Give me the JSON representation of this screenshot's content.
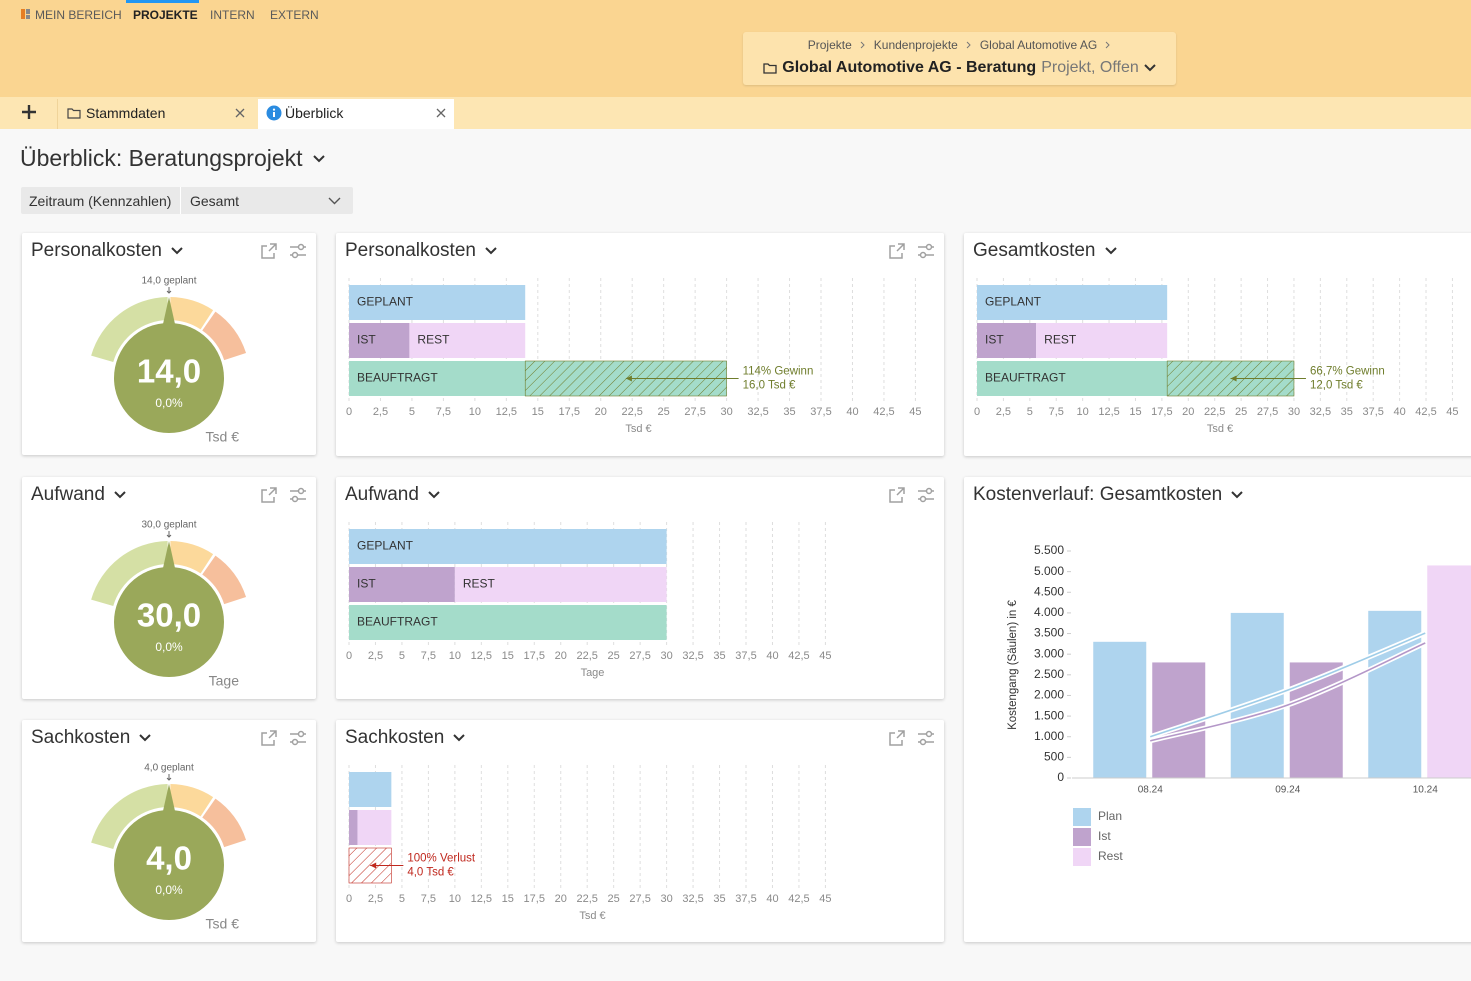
{
  "nav": {
    "items": [
      "MEIN BEREICH",
      "PROJEKTE",
      "INTERN",
      "EXTERN"
    ]
  },
  "breadcrumb": {
    "path": [
      "Projekte",
      "Kundenprojekte",
      "Global Automotive AG"
    ],
    "title": "Global Automotive AG - Beratung",
    "status": "Projekt, Offen"
  },
  "tabs": [
    "Stammdaten",
    "Überblick"
  ],
  "page": {
    "title": "Überblick: Beratungsprojekt",
    "filter": {
      "label": "Zeitraum (Kennzahlen)",
      "value": "Gesamt"
    }
  },
  "gauges": [
    {
      "title": "Personalkosten",
      "planned": "14,0 geplant",
      "value": "14,0",
      "percent": "0,0%",
      "unit": "Tsd €"
    },
    {
      "title": "Aufwand",
      "planned": "30,0 geplant",
      "value": "30,0",
      "percent": "0,0%",
      "unit": "Tage"
    },
    {
      "title": "Sachkosten",
      "planned": "4,0 geplant",
      "value": "4,0",
      "percent": "0,0%",
      "unit": "Tsd €"
    }
  ],
  "chart_data": [
    {
      "type": "budget",
      "title": "Personalkosten",
      "xlabel": "Tsd €",
      "xlim": [
        0,
        46
      ],
      "xticks": [
        0,
        {
          "value": 2.5,
          "label": "2,5"
        },
        5,
        {
          "value": 7.5,
          "label": "7,5"
        },
        10,
        {
          "value": 12.5,
          "label": "12,5"
        },
        15,
        {
          "value": 17.5,
          "label": "17,5"
        },
        20,
        {
          "value": 22.5,
          "label": "22,5"
        },
        25,
        {
          "value": 27.5,
          "label": "27,5"
        },
        30,
        {
          "value": 32.5,
          "label": "32,5"
        },
        35,
        {
          "value": 37.5,
          "label": "37,5"
        },
        40,
        {
          "value": 42.5,
          "label": "42,5"
        },
        45
      ],
      "bars": {
        "planned": {
          "label": "GEPLANT",
          "value": 14,
          "color": "#aed4ee"
        },
        "actual": {
          "label": "IST",
          "value": 4.8,
          "color": "#bfa3cd"
        },
        "rest": {
          "label": "REST",
          "value": 9.2,
          "color": "#f0d6f6"
        },
        "commissioned": {
          "label": "BEAUFTRAGT",
          "value": 30,
          "color": "#a4dcca"
        }
      },
      "annotation": [
        "114% Gewinn",
        "16,0 Tsd €"
      ],
      "annotation_color": "#6f7d2c"
    },
    {
      "type": "budget",
      "title": "Gesamtkosten",
      "xlabel": "Tsd €",
      "xlim": [
        0,
        46
      ],
      "xticks": [
        0,
        {
          "value": 2.5,
          "label": "2,5"
        },
        5,
        {
          "value": 7.5,
          "label": "7,5"
        },
        10,
        {
          "value": 12.5,
          "label": "12,5"
        },
        15,
        {
          "value": 17.5,
          "label": "17,5"
        },
        20,
        {
          "value": 22.5,
          "label": "22,5"
        },
        25,
        {
          "value": 27.5,
          "label": "27,5"
        },
        30,
        {
          "value": 32.5,
          "label": "32,5"
        },
        35,
        {
          "value": 37.5,
          "label": "37,5"
        },
        40,
        {
          "value": 42.5,
          "label": "42,5"
        },
        45
      ],
      "bars": {
        "planned": {
          "label": "GEPLANT",
          "value": 18,
          "color": "#aed4ee"
        },
        "actual": {
          "label": "IST",
          "value": 5.6,
          "color": "#bfa3cd"
        },
        "rest": {
          "label": "REST",
          "value": 12.4,
          "color": "#f0d6f6"
        },
        "commissioned": {
          "label": "BEAUFTRAGT",
          "value": 30,
          "color": "#a4dcca"
        }
      },
      "annotation": [
        "66,7% Gewinn",
        "12,0 Tsd €"
      ],
      "annotation_color": "#6f7d2c"
    },
    {
      "type": "budget",
      "title": "Aufwand",
      "xlabel": "Tage",
      "xlim": [
        0,
        46
      ],
      "xticks": [
        0,
        {
          "value": 2.5,
          "label": "2,5"
        },
        5,
        {
          "value": 7.5,
          "label": "7,5"
        },
        10,
        {
          "value": 12.5,
          "label": "12,5"
        },
        15,
        {
          "value": 17.5,
          "label": "17,5"
        },
        20,
        {
          "value": 22.5,
          "label": "22,5"
        },
        25,
        {
          "value": 27.5,
          "label": "27,5"
        },
        30,
        {
          "value": 32.5,
          "label": "32,5"
        },
        35,
        {
          "value": 37.5,
          "label": "37,5"
        },
        40,
        {
          "value": 42.5,
          "label": "42,5"
        },
        45
      ],
      "bars": {
        "planned": {
          "label": "GEPLANT",
          "value": 30,
          "color": "#aed4ee"
        },
        "actual": {
          "label": "IST",
          "value": 10,
          "color": "#bfa3cd"
        },
        "rest": {
          "label": "REST",
          "value": 20,
          "color": "#f0d6f6"
        },
        "commissioned": {
          "label": "BEAUFTRAGT",
          "value": 30,
          "color": "#a4dcca"
        }
      }
    },
    {
      "type": "budget",
      "title": "Sachkosten",
      "xlabel": "Tsd €",
      "xlim": [
        0,
        46
      ],
      "xticks": [
        0,
        {
          "value": 2.5,
          "label": "2,5"
        },
        5,
        {
          "value": 7.5,
          "label": "7,5"
        },
        10,
        {
          "value": 12.5,
          "label": "12,5"
        },
        15,
        {
          "value": 17.5,
          "label": "17,5"
        },
        20,
        {
          "value": 22.5,
          "label": "22,5"
        },
        25,
        {
          "value": 27.5,
          "label": "27,5"
        },
        30,
        {
          "value": 32.5,
          "label": "32,5"
        },
        35,
        {
          "value": 37.5,
          "label": "37,5"
        },
        40,
        {
          "value": 42.5,
          "label": "42,5"
        },
        45
      ],
      "bars": {
        "planned": {
          "value": 4,
          "color": "#aed4ee"
        },
        "actual": {
          "value": 0.8,
          "color": "#bfa3cd"
        },
        "rest": {
          "value": 3.2,
          "color": "#f0d6f6"
        },
        "commissioned": {
          "value": 0,
          "color": "#a4dcca"
        }
      },
      "annotation": [
        "100% Verlust",
        "4,0 Tsd €"
      ],
      "annotation_color": "#c0281e"
    },
    {
      "type": "combo",
      "title": "Kostenverlauf: Gesamtkosten",
      "ylabel": "Kostengang (Säulen) in €",
      "categories": [
        "08.24",
        "09.24",
        "10.24"
      ],
      "series": [
        {
          "name": "Plan",
          "color": "#aed4ee",
          "values": [
            3300,
            4000,
            4050
          ]
        },
        {
          "name": "Ist",
          "color": "#bfa3cd",
          "values": [
            2800,
            2800,
            null
          ]
        },
        {
          "name": "Rest",
          "color": "#f0d6f6",
          "values": [
            null,
            null,
            5150
          ]
        }
      ],
      "lines": [
        {
          "color": "#9fcde8",
          "values": [
            1000,
            2130,
            3510
          ]
        },
        {
          "color": "#b497c8",
          "values": [
            900,
            1770,
            3270
          ]
        }
      ],
      "ylim": [
        0,
        5500
      ],
      "yticks": [
        0,
        500,
        {
          "value": 1000,
          "label": "1.000"
        },
        {
          "value": 1500,
          "label": "1.500"
        },
        {
          "value": 2000,
          "label": "2.000"
        },
        {
          "value": 2500,
          "label": "2.500"
        },
        {
          "value": 3000,
          "label": "3.000"
        },
        {
          "value": 3500,
          "label": "3.500"
        },
        {
          "value": 4000,
          "label": "4.000"
        },
        {
          "value": 4500,
          "label": "4.500"
        },
        {
          "value": 5000,
          "label": "5.000"
        },
        {
          "value": 5500,
          "label": "5.500"
        }
      ]
    }
  ]
}
